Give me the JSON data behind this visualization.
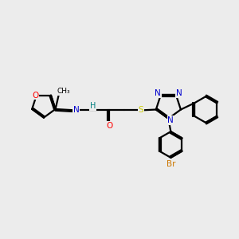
{
  "bg_color": "#ececec",
  "bond_color": "#000000",
  "N_color": "#0000cc",
  "O_color": "#ff0000",
  "S_color": "#cccc00",
  "Br_color": "#cc7700",
  "H_color": "#008080",
  "line_width": 1.6,
  "fig_w": 3.0,
  "fig_h": 3.0,
  "dpi": 100,
  "xlim": [
    0,
    10
  ],
  "ylim": [
    0,
    10
  ]
}
